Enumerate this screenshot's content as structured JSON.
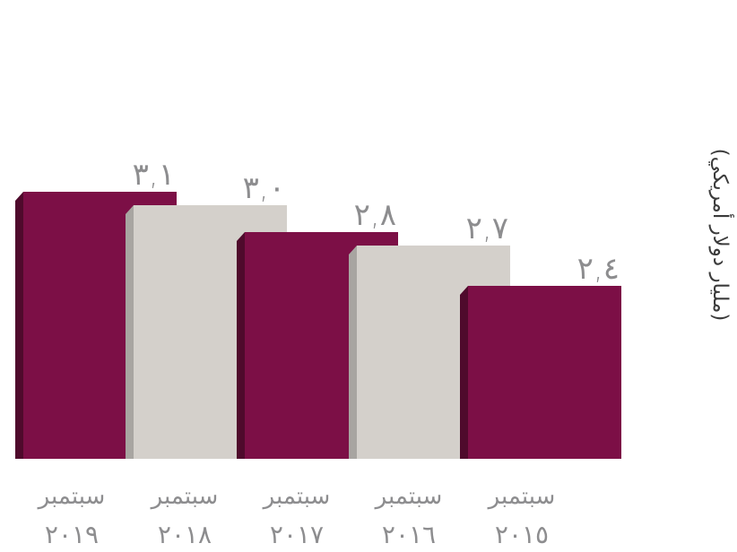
{
  "chart_data": {
    "type": "bar",
    "unit_label": "(مليار دولار أمريكي)",
    "categories": [
      {
        "line1": "سبتمبر",
        "line2": "٢٠١٩"
      },
      {
        "line1": "سبتمبر",
        "line2": "٢٠١٨"
      },
      {
        "line1": "سبتمبر",
        "line2": "٢٠١٧"
      },
      {
        "line1": "سبتمبر",
        "line2": "٢٠١٦"
      },
      {
        "line1": "سبتمبر",
        "line2": "٢٠١٥"
      }
    ],
    "values": [
      3.1,
      3.0,
      2.8,
      2.7,
      2.4
    ],
    "value_labels": [
      "٣,١",
      "٣,٠",
      "٢,٨",
      "٢,٧",
      "٢,٤"
    ],
    "colors": {
      "maroon": "#7c0f46",
      "maroon_side": "#4f0a2c",
      "grey": "#d4d0cb",
      "grey_side": "#a8a5a1",
      "text": "#8d8d8f"
    },
    "bar_colors": [
      "maroon",
      "grey",
      "maroon",
      "grey",
      "maroon"
    ],
    "grid": false,
    "legend": false
  }
}
